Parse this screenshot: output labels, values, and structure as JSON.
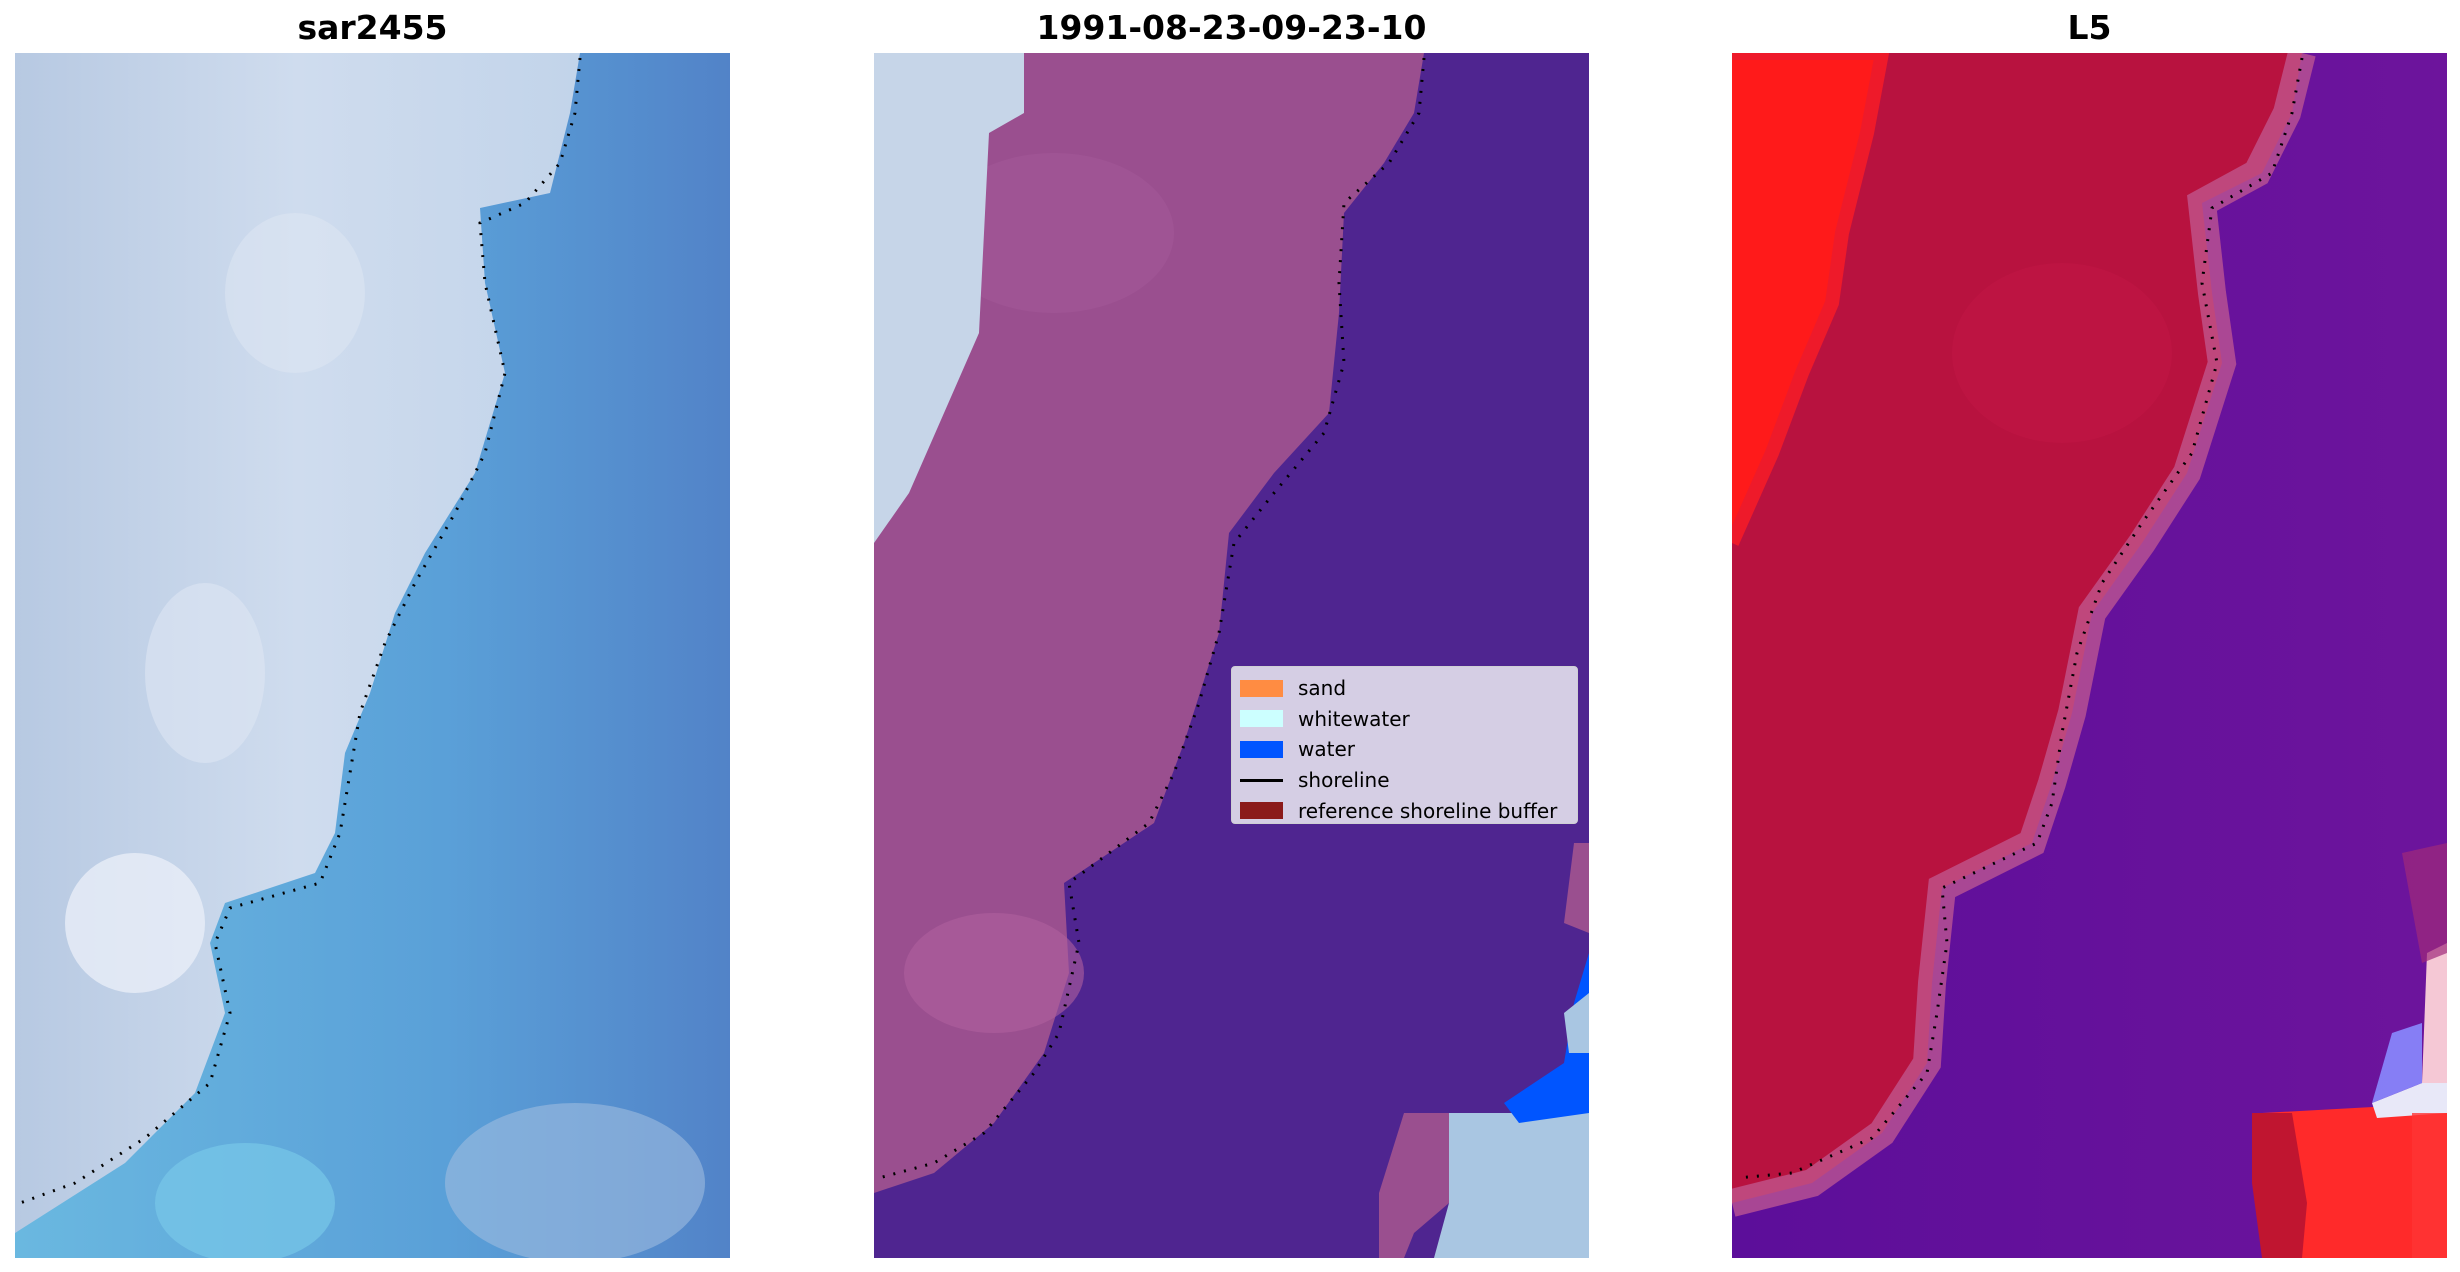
{
  "panels": [
    {
      "title": "sar2455"
    },
    {
      "title": "1991-08-23-09-23-10"
    },
    {
      "title": "L5"
    }
  ],
  "legend": {
    "items": [
      {
        "label": "sand",
        "color": "#ff8c42",
        "kind": "patch"
      },
      {
        "label": "whitewater",
        "color": "#ccffff",
        "kind": "patch"
      },
      {
        "label": "water",
        "color": "#0055ff",
        "kind": "patch"
      },
      {
        "label": "shoreline",
        "color": "#000000",
        "kind": "line"
      },
      {
        "label": "reference shoreline buffer",
        "color": "#8b1a1a",
        "kind": "patch"
      }
    ]
  },
  "colors": {
    "rgb_land": "#c9d8ea",
    "rgb_water": "#5a8fcc",
    "rgb_shallow": "#6ab8e0",
    "class_land": "#9a4f8f",
    "class_water": "#4f2590",
    "class_whitewater": "#c6d5e8",
    "class_water_blue": "#0055ff",
    "ndwi_land": "#b8123f",
    "ndwi_water": "#63109a",
    "ndwi_bright_red": "#ff1a1a"
  }
}
